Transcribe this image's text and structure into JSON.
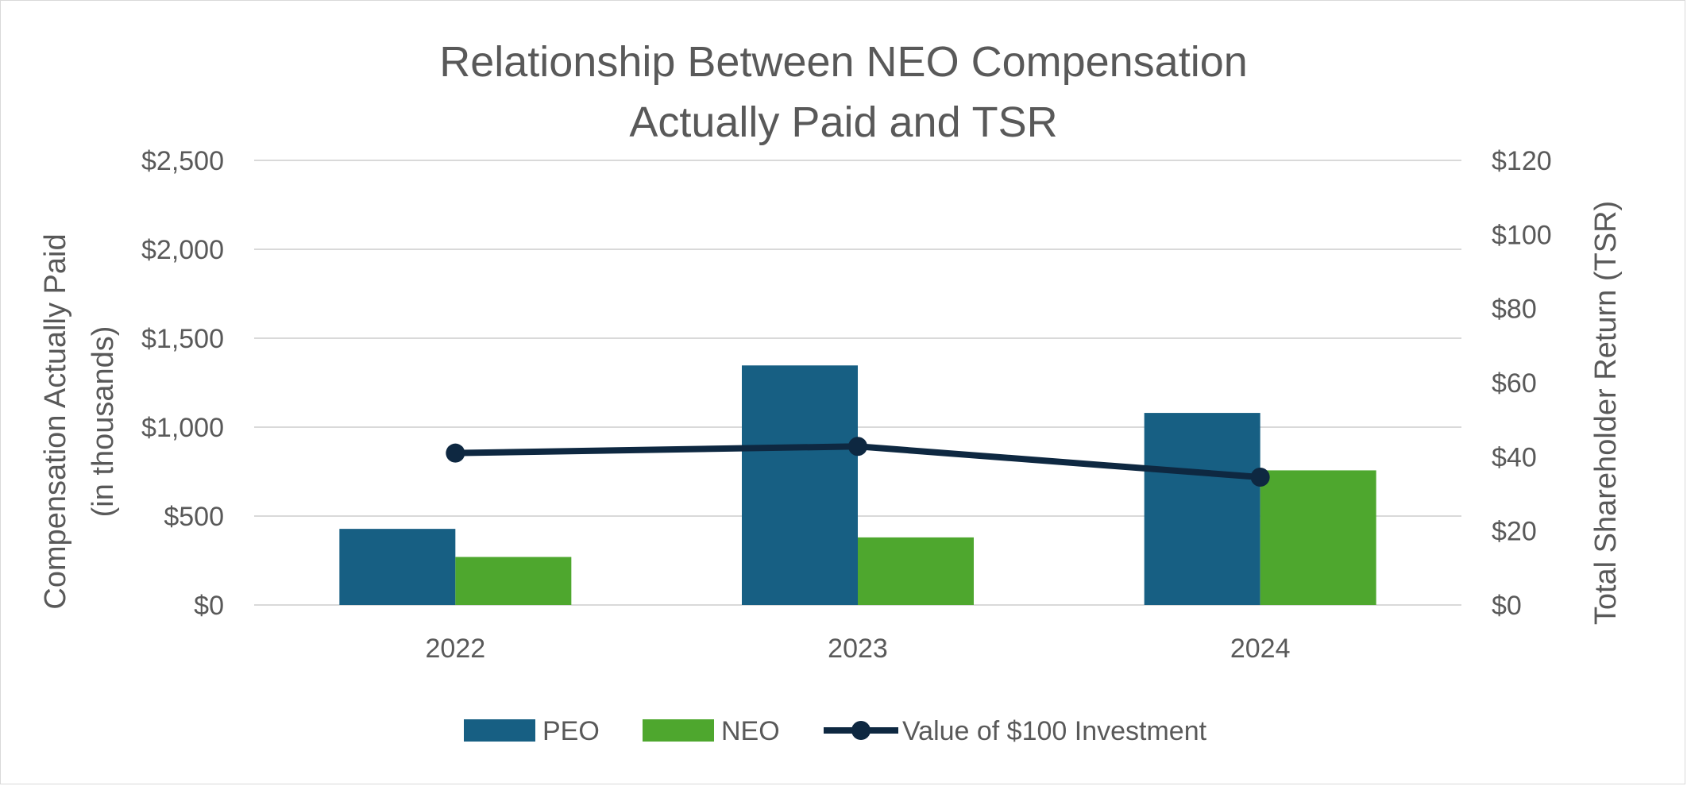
{
  "chart_data": {
    "type": "bar",
    "title": [
      "Relationship Between NEO Compensation",
      "Actually Paid and TSR"
    ],
    "categories": [
      "2022",
      "2023",
      "2024"
    ],
    "series": [
      {
        "name": "PEO",
        "type": "bar",
        "axis": "left",
        "color": "#175F83",
        "values": [
          428,
          1347,
          1080
        ]
      },
      {
        "name": "NEO",
        "type": "bar",
        "axis": "left",
        "color": "#4EA72E",
        "values": [
          270,
          380,
          757
        ]
      },
      {
        "name": "Value of $100 Investment",
        "type": "line",
        "axis": "right",
        "color": "#0E2841",
        "values": [
          41.0,
          42.8,
          34.5
        ]
      }
    ],
    "y_left": {
      "label": [
        "Compensation Actually Paid",
        "(in thousands)"
      ],
      "ylim": [
        0,
        2500
      ],
      "ticks": [
        0,
        500,
        1000,
        1500,
        2000,
        2500
      ],
      "tick_labels": [
        "$0",
        "$500",
        "$1,000",
        "$1,500",
        "$2,000",
        "$2,500"
      ]
    },
    "y_right": {
      "label": "Total Shareholder Return (TSR)",
      "ylim": [
        0,
        120
      ],
      "ticks": [
        0,
        20,
        40,
        60,
        80,
        100,
        120
      ],
      "tick_labels": [
        "$0",
        "$20",
        "$40",
        "$60",
        "$80",
        "$100",
        "$120"
      ]
    },
    "grid": true,
    "legend": "bottom",
    "gridline_color": "#d9d9d9"
  }
}
